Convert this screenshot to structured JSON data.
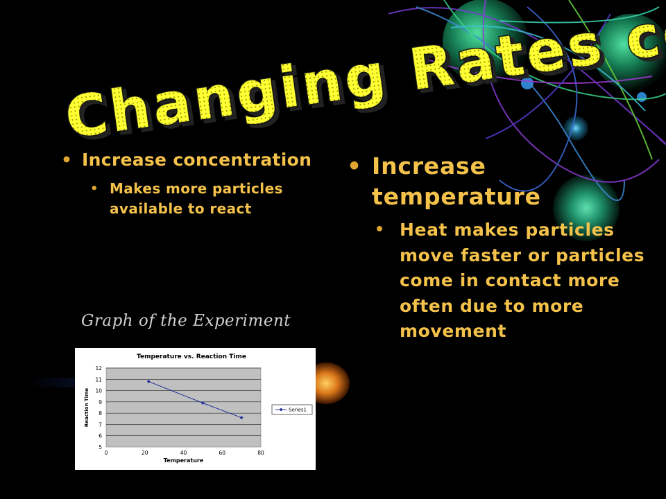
{
  "slide": {
    "title": "Changing Rates cont.",
    "left": {
      "bullet": "Increase concentration",
      "sub_bullet": "Makes more particles available to react"
    },
    "right": {
      "bullet": "Increase temperature",
      "sub_bullet": "Heat makes particles move faster or particles come in contact more often due to more movement"
    },
    "graph_caption": "Graph of the Experiment"
  },
  "colors": {
    "background": "#000000",
    "text": "#f4c24a",
    "title_fill": "#ffff33",
    "plot_area": "#c0c0c0",
    "series": "#1f2f9c"
  },
  "chart_data": {
    "type": "line",
    "title": "Temperature vs. Reaction Time",
    "xlabel": "Temperature",
    "ylabel": "Reaction Time",
    "xlim": [
      0,
      80
    ],
    "ylim": [
      5,
      12
    ],
    "x_ticks": [
      0,
      20,
      40,
      60,
      80
    ],
    "y_ticks": [
      5,
      6,
      7,
      8,
      9,
      10,
      11,
      12
    ],
    "grid": true,
    "legend": "right",
    "series": [
      {
        "name": "Series1",
        "x": [
          22,
          50,
          70
        ],
        "y": [
          10.8,
          8.9,
          7.6
        ]
      }
    ]
  }
}
